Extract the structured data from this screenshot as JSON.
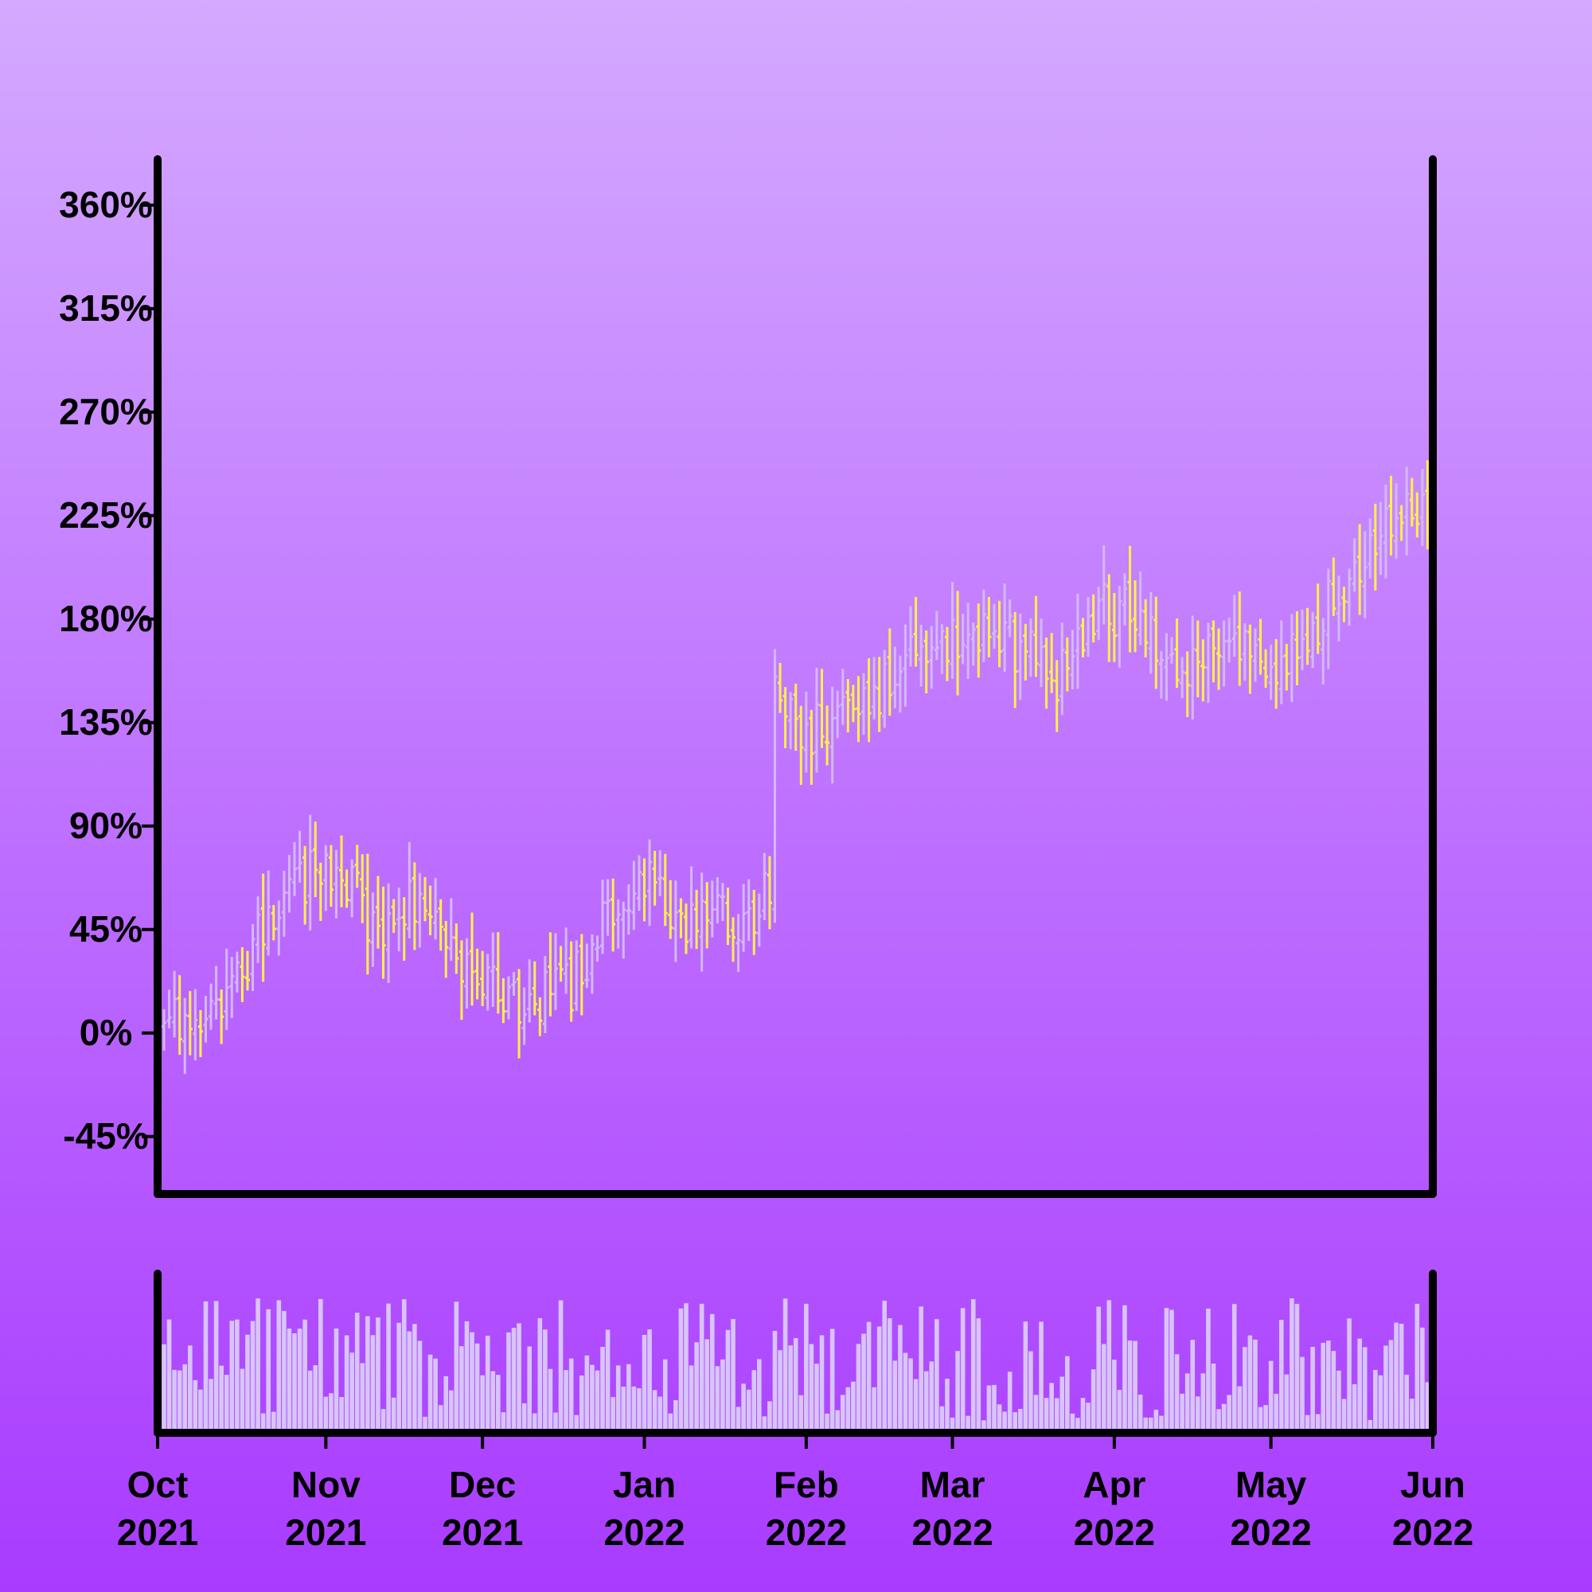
{
  "chart_data": {
    "type": "ohlc",
    "title": "",
    "xlabel": "",
    "ylabel": "",
    "ylim": [
      -70,
      380
    ],
    "y_ticks": [
      -45,
      0,
      45,
      90,
      135,
      180,
      225,
      270,
      315,
      360
    ],
    "y_tick_labels": [
      "-45%",
      "0%",
      "45%",
      "90%",
      "135%",
      "180%",
      "225%",
      "270%",
      "315%",
      "360%"
    ],
    "x_range": [
      "2021-10-01",
      "2022-06-01"
    ],
    "x_ticks": [
      {
        "month": "Oct",
        "year": "2021",
        "date": "2021-10-01"
      },
      {
        "month": "Nov",
        "year": "2021",
        "date": "2021-11-01"
      },
      {
        "month": "Dec",
        "year": "2021",
        "date": "2021-12-01"
      },
      {
        "month": "Jan",
        "year": "2022",
        "date": "2022-01-01"
      },
      {
        "month": "Feb",
        "year": "2022",
        "date": "2022-02-01"
      },
      {
        "month": "Mar",
        "year": "2022",
        "date": "2022-03-01"
      },
      {
        "month": "Apr",
        "year": "2022",
        "date": "2022-04-01"
      },
      {
        "month": "May",
        "year": "2022",
        "date": "2022-05-01"
      },
      {
        "month": "Jun",
        "year": "2022",
        "date": "2022-06-01"
      }
    ],
    "anchors": [
      {
        "date": "2021-10-01",
        "close": 5
      },
      {
        "date": "2021-10-08",
        "close": 3
      },
      {
        "date": "2021-10-15",
        "close": 22
      },
      {
        "date": "2021-10-22",
        "close": 55
      },
      {
        "date": "2021-10-29",
        "close": 70
      },
      {
        "date": "2021-11-05",
        "close": 65
      },
      {
        "date": "2021-11-12",
        "close": 40
      },
      {
        "date": "2021-11-19",
        "close": 62
      },
      {
        "date": "2021-11-26",
        "close": 30
      },
      {
        "date": "2021-12-03",
        "close": 18
      },
      {
        "date": "2021-12-10",
        "close": 15
      },
      {
        "date": "2021-12-17",
        "close": 18
      },
      {
        "date": "2021-12-24",
        "close": 45
      },
      {
        "date": "2021-12-31",
        "close": 70
      },
      {
        "date": "2022-01-07",
        "close": 45
      },
      {
        "date": "2022-01-14",
        "close": 55
      },
      {
        "date": "2022-01-21",
        "close": 48
      },
      {
        "date": "2022-01-25",
        "close": 62
      },
      {
        "date": "2022-01-26",
        "close": 150
      },
      {
        "date": "2022-02-01",
        "close": 125
      },
      {
        "date": "2022-02-08",
        "close": 148
      },
      {
        "date": "2022-02-15",
        "close": 150
      },
      {
        "date": "2022-02-22",
        "close": 168
      },
      {
        "date": "2022-03-01",
        "close": 172
      },
      {
        "date": "2022-03-08",
        "close": 178
      },
      {
        "date": "2022-03-15",
        "close": 165
      },
      {
        "date": "2022-03-22",
        "close": 155
      },
      {
        "date": "2022-03-29",
        "close": 185
      },
      {
        "date": "2022-04-05",
        "close": 180
      },
      {
        "date": "2022-04-12",
        "close": 160
      },
      {
        "date": "2022-04-19",
        "close": 162
      },
      {
        "date": "2022-04-26",
        "close": 170
      },
      {
        "date": "2022-05-03",
        "close": 162
      },
      {
        "date": "2022-05-10",
        "close": 180
      },
      {
        "date": "2022-05-17",
        "close": 200
      },
      {
        "date": "2022-05-24",
        "close": 225
      },
      {
        "date": "2022-05-31",
        "close": 222
      },
      {
        "date": "2022-06-14",
        "close": 225
      },
      {
        "date": "2022-06-28",
        "close": 240
      }
    ],
    "volume": {
      "units": "relative",
      "max": 1.0,
      "min": 0.05
    },
    "colors": {
      "up_bar": "#d4b8f8",
      "down_bar": "#fff04a",
      "volume_bar": "#d8c4fa",
      "axis": "#000000"
    },
    "grid": false,
    "legend": null
  }
}
